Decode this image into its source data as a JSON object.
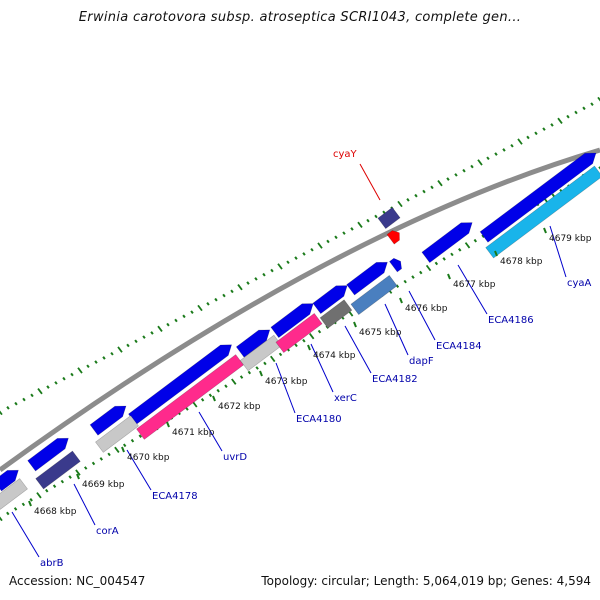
{
  "title": "Erwinia carotovora subsp. atroseptica SCRI1043, complete gen...",
  "footer": {
    "accession": "Accession: NC_004547",
    "topology": "Topology: circular; Length: 5,064,019 bp; Genes: 4,594"
  },
  "colors": {
    "backbone": "#8c8c8c",
    "forward_gene": "#0000e8",
    "feature_red": "#ff0000",
    "pink": "#ff2a8c",
    "light_gray": "#c8c8c8",
    "dark_gray": "#707070",
    "steel_blue": "#4a7fbf",
    "cyan": "#19b4ea",
    "navy": "#3a3a8c",
    "dot_ticks": "#1a7a1a",
    "label_text": "#0000aa"
  },
  "scale": {
    "ticks": [
      "4668 kbp",
      "4669 kbp",
      "4670 kbp",
      "4671 kbp",
      "4672 kbp",
      "4673 kbp",
      "4674 kbp",
      "4675 kbp",
      "4676 kbp",
      "4677 kbp",
      "4678 kbp",
      "4679 kbp"
    ]
  },
  "genes": {
    "labels": [
      "abrB",
      "corA",
      "ECA4178",
      "uvrD",
      "ECA4180",
      "xerC",
      "ECA4182",
      "dapF",
      "ECA4184",
      "ECA4186",
      "cyaA"
    ],
    "feature": "cyaY"
  }
}
